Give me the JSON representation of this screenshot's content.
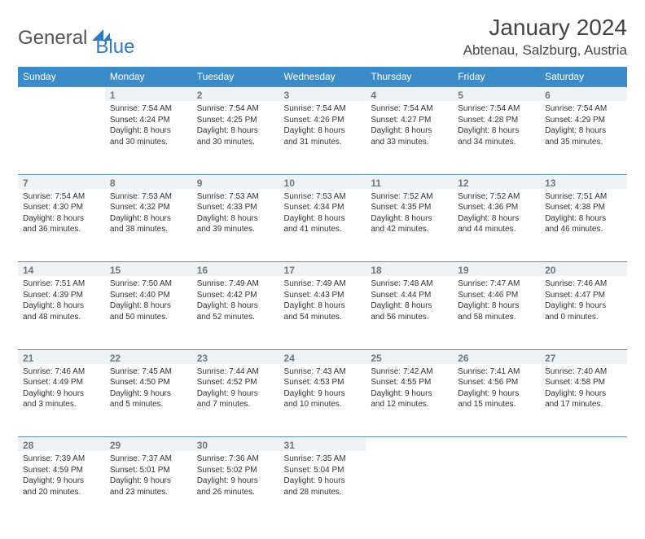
{
  "logo": {
    "text1": "General",
    "text2": "Blue"
  },
  "title": "January 2024",
  "location": "Abtenau, Salzburg, Austria",
  "colors": {
    "header_bg": "#3b8bc8",
    "header_text": "#ffffff",
    "daynum_bg": "#eef2f4",
    "daynum_text": "#6a7a85",
    "row_border": "#5a8aad",
    "body_text": "#333333",
    "logo_blue": "#2f7bbf"
  },
  "day_headers": [
    "Sunday",
    "Monday",
    "Tuesday",
    "Wednesday",
    "Thursday",
    "Friday",
    "Saturday"
  ],
  "weeks": [
    {
      "nums": [
        "",
        "1",
        "2",
        "3",
        "4",
        "5",
        "6"
      ],
      "cells": [
        [],
        [
          "Sunrise: 7:54 AM",
          "Sunset: 4:24 PM",
          "Daylight: 8 hours",
          "and 30 minutes."
        ],
        [
          "Sunrise: 7:54 AM",
          "Sunset: 4:25 PM",
          "Daylight: 8 hours",
          "and 30 minutes."
        ],
        [
          "Sunrise: 7:54 AM",
          "Sunset: 4:26 PM",
          "Daylight: 8 hours",
          "and 31 minutes."
        ],
        [
          "Sunrise: 7:54 AM",
          "Sunset: 4:27 PM",
          "Daylight: 8 hours",
          "and 33 minutes."
        ],
        [
          "Sunrise: 7:54 AM",
          "Sunset: 4:28 PM",
          "Daylight: 8 hours",
          "and 34 minutes."
        ],
        [
          "Sunrise: 7:54 AM",
          "Sunset: 4:29 PM",
          "Daylight: 8 hours",
          "and 35 minutes."
        ]
      ]
    },
    {
      "nums": [
        "7",
        "8",
        "9",
        "10",
        "11",
        "12",
        "13"
      ],
      "cells": [
        [
          "Sunrise: 7:54 AM",
          "Sunset: 4:30 PM",
          "Daylight: 8 hours",
          "and 36 minutes."
        ],
        [
          "Sunrise: 7:53 AM",
          "Sunset: 4:32 PM",
          "Daylight: 8 hours",
          "and 38 minutes."
        ],
        [
          "Sunrise: 7:53 AM",
          "Sunset: 4:33 PM",
          "Daylight: 8 hours",
          "and 39 minutes."
        ],
        [
          "Sunrise: 7:53 AM",
          "Sunset: 4:34 PM",
          "Daylight: 8 hours",
          "and 41 minutes."
        ],
        [
          "Sunrise: 7:52 AM",
          "Sunset: 4:35 PM",
          "Daylight: 8 hours",
          "and 42 minutes."
        ],
        [
          "Sunrise: 7:52 AM",
          "Sunset: 4:36 PM",
          "Daylight: 8 hours",
          "and 44 minutes."
        ],
        [
          "Sunrise: 7:51 AM",
          "Sunset: 4:38 PM",
          "Daylight: 8 hours",
          "and 46 minutes."
        ]
      ]
    },
    {
      "nums": [
        "14",
        "15",
        "16",
        "17",
        "18",
        "19",
        "20"
      ],
      "cells": [
        [
          "Sunrise: 7:51 AM",
          "Sunset: 4:39 PM",
          "Daylight: 8 hours",
          "and 48 minutes."
        ],
        [
          "Sunrise: 7:50 AM",
          "Sunset: 4:40 PM",
          "Daylight: 8 hours",
          "and 50 minutes."
        ],
        [
          "Sunrise: 7:49 AM",
          "Sunset: 4:42 PM",
          "Daylight: 8 hours",
          "and 52 minutes."
        ],
        [
          "Sunrise: 7:49 AM",
          "Sunset: 4:43 PM",
          "Daylight: 8 hours",
          "and 54 minutes."
        ],
        [
          "Sunrise: 7:48 AM",
          "Sunset: 4:44 PM",
          "Daylight: 8 hours",
          "and 56 minutes."
        ],
        [
          "Sunrise: 7:47 AM",
          "Sunset: 4:46 PM",
          "Daylight: 8 hours",
          "and 58 minutes."
        ],
        [
          "Sunrise: 7:46 AM",
          "Sunset: 4:47 PM",
          "Daylight: 9 hours",
          "and 0 minutes."
        ]
      ]
    },
    {
      "nums": [
        "21",
        "22",
        "23",
        "24",
        "25",
        "26",
        "27"
      ],
      "cells": [
        [
          "Sunrise: 7:46 AM",
          "Sunset: 4:49 PM",
          "Daylight: 9 hours",
          "and 3 minutes."
        ],
        [
          "Sunrise: 7:45 AM",
          "Sunset: 4:50 PM",
          "Daylight: 9 hours",
          "and 5 minutes."
        ],
        [
          "Sunrise: 7:44 AM",
          "Sunset: 4:52 PM",
          "Daylight: 9 hours",
          "and 7 minutes."
        ],
        [
          "Sunrise: 7:43 AM",
          "Sunset: 4:53 PM",
          "Daylight: 9 hours",
          "and 10 minutes."
        ],
        [
          "Sunrise: 7:42 AM",
          "Sunset: 4:55 PM",
          "Daylight: 9 hours",
          "and 12 minutes."
        ],
        [
          "Sunrise: 7:41 AM",
          "Sunset: 4:56 PM",
          "Daylight: 9 hours",
          "and 15 minutes."
        ],
        [
          "Sunrise: 7:40 AM",
          "Sunset: 4:58 PM",
          "Daylight: 9 hours",
          "and 17 minutes."
        ]
      ]
    },
    {
      "nums": [
        "28",
        "29",
        "30",
        "31",
        "",
        "",
        ""
      ],
      "cells": [
        [
          "Sunrise: 7:39 AM",
          "Sunset: 4:59 PM",
          "Daylight: 9 hours",
          "and 20 minutes."
        ],
        [
          "Sunrise: 7:37 AM",
          "Sunset: 5:01 PM",
          "Daylight: 9 hours",
          "and 23 minutes."
        ],
        [
          "Sunrise: 7:36 AM",
          "Sunset: 5:02 PM",
          "Daylight: 9 hours",
          "and 26 minutes."
        ],
        [
          "Sunrise: 7:35 AM",
          "Sunset: 5:04 PM",
          "Daylight: 9 hours",
          "and 28 minutes."
        ],
        [],
        [],
        []
      ]
    }
  ]
}
